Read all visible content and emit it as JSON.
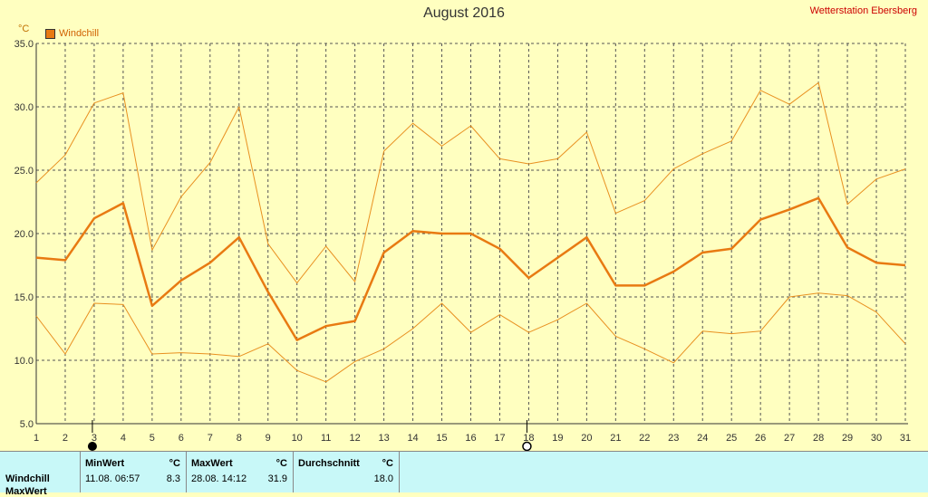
{
  "header": {
    "title": "August 2016",
    "station": "Wetterstation Ebersberg",
    "unit": "°C"
  },
  "legend": {
    "label": "Windchill",
    "color": "#e87a12"
  },
  "chart_data": {
    "type": "line",
    "title": "August 2016",
    "ylabel": "°C",
    "ylim": [
      5,
      35
    ],
    "yticks": [
      "5.0",
      "10.0",
      "15.0",
      "20.0",
      "25.0",
      "30.0",
      "35.0"
    ],
    "x": [
      1,
      2,
      3,
      4,
      5,
      6,
      7,
      8,
      9,
      10,
      11,
      12,
      13,
      14,
      15,
      16,
      17,
      18,
      19,
      20,
      21,
      22,
      23,
      24,
      25,
      26,
      27,
      28,
      29,
      30,
      31
    ],
    "grid": true,
    "markers": [
      {
        "day": 3,
        "symbol": "new-moon"
      },
      {
        "day": 18,
        "symbol": "full-moon"
      }
    ],
    "series": [
      {
        "name": "Windchill",
        "role": "avg",
        "color": "#e87a12",
        "values": [
          18.1,
          17.9,
          21.2,
          22.4,
          14.3,
          16.3,
          17.7,
          19.7,
          15.4,
          11.6,
          12.7,
          13.1,
          18.5,
          20.2,
          20.0,
          20.0,
          18.8,
          16.5,
          18.1,
          19.7,
          15.9,
          15.9,
          17.0,
          18.5,
          18.8,
          21.1,
          21.9,
          22.8,
          18.9,
          17.7,
          17.5
        ]
      },
      {
        "role": "max",
        "color": "#e89020",
        "values": [
          24.0,
          26.2,
          30.3,
          31.1,
          18.7,
          22.9,
          25.6,
          30.0,
          19.2,
          16.1,
          19.0,
          16.2,
          26.5,
          28.7,
          26.9,
          28.5,
          25.9,
          25.5,
          25.9,
          28.0,
          21.6,
          22.6,
          25.1,
          26.3,
          27.3,
          31.3,
          30.2,
          31.9,
          22.3,
          24.3,
          25.1
        ]
      },
      {
        "role": "min",
        "color": "#e89020",
        "values": [
          13.5,
          10.5,
          14.5,
          14.4,
          10.5,
          10.6,
          10.5,
          10.3,
          11.3,
          9.2,
          8.3,
          9.9,
          10.9,
          12.5,
          14.5,
          12.2,
          13.6,
          12.2,
          13.2,
          14.5,
          11.9,
          10.9,
          9.8,
          12.3,
          12.1,
          12.3,
          15.0,
          15.3,
          15.1,
          13.8,
          11.3
        ]
      }
    ]
  },
  "table": {
    "row_label": "Windchill",
    "row_label2": "MaxWert",
    "min": {
      "header": "MinWert",
      "unit": "°C",
      "datetime": "11.08.  06:57",
      "value": "8.3"
    },
    "max": {
      "header": "MaxWert",
      "unit": "°C",
      "datetime": "28.08.  14:12",
      "value": "31.9"
    },
    "avg": {
      "header": "Durchschnitt",
      "unit": "°C",
      "value": "18.0"
    }
  }
}
